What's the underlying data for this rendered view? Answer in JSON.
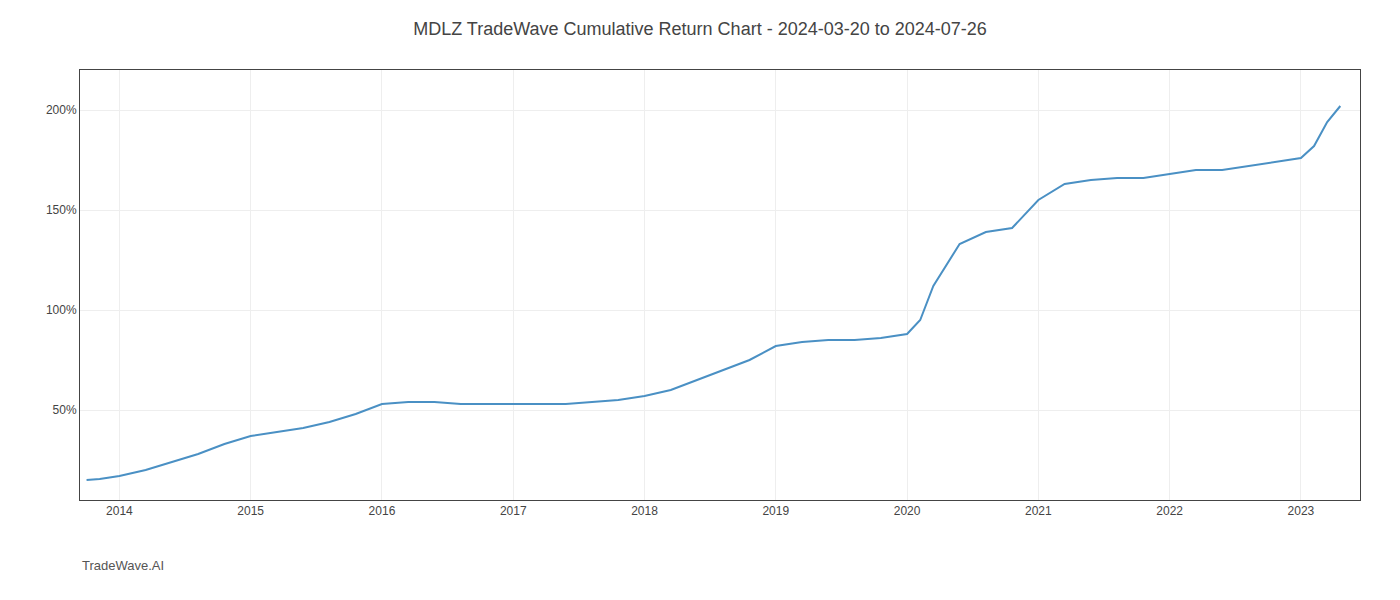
{
  "chart_data": {
    "type": "line",
    "title": "MDLZ TradeWave Cumulative Return Chart - 2024-03-20 to 2024-07-26",
    "annotations": [
      "TradeWave.AI"
    ],
    "x": [
      2013.75,
      2013.85,
      2014.0,
      2014.2,
      2014.4,
      2014.6,
      2014.8,
      2015.0,
      2015.2,
      2015.4,
      2015.6,
      2015.8,
      2016.0,
      2016.2,
      2016.4,
      2016.6,
      2016.8,
      2017.0,
      2017.2,
      2017.4,
      2017.6,
      2017.8,
      2018.0,
      2018.2,
      2018.4,
      2018.6,
      2018.8,
      2019.0,
      2019.2,
      2019.4,
      2019.6,
      2019.8,
      2020.0,
      2020.1,
      2020.2,
      2020.4,
      2020.6,
      2020.8,
      2021.0,
      2021.2,
      2021.4,
      2021.6,
      2021.8,
      2022.0,
      2022.2,
      2022.4,
      2022.6,
      2022.8,
      2023.0,
      2023.1,
      2023.2,
      2023.3
    ],
    "values": [
      15,
      15.5,
      17,
      20,
      24,
      28,
      33,
      37,
      39,
      41,
      44,
      48,
      53,
      54,
      54,
      53,
      53,
      53,
      53,
      53,
      54,
      55,
      57,
      60,
      65,
      70,
      75,
      82,
      84,
      85,
      85,
      86,
      88,
      95,
      112,
      133,
      139,
      141,
      155,
      163,
      165,
      166,
      166,
      168,
      170,
      170,
      172,
      174,
      176,
      182,
      194,
      202
    ],
    "color": "#4a90c4",
    "xlim": [
      2013.7,
      2023.45
    ],
    "xticks": [
      2014,
      2015,
      2016,
      2017,
      2018,
      2019,
      2020,
      2021,
      2022,
      2023
    ],
    "ylim": [
      5,
      220
    ],
    "yticks": [
      {
        "value": 50,
        "label": "50%"
      },
      {
        "value": 100,
        "label": "100%"
      },
      {
        "value": 150,
        "label": "150%"
      },
      {
        "value": 200,
        "label": "200%"
      }
    ],
    "grid": true
  }
}
